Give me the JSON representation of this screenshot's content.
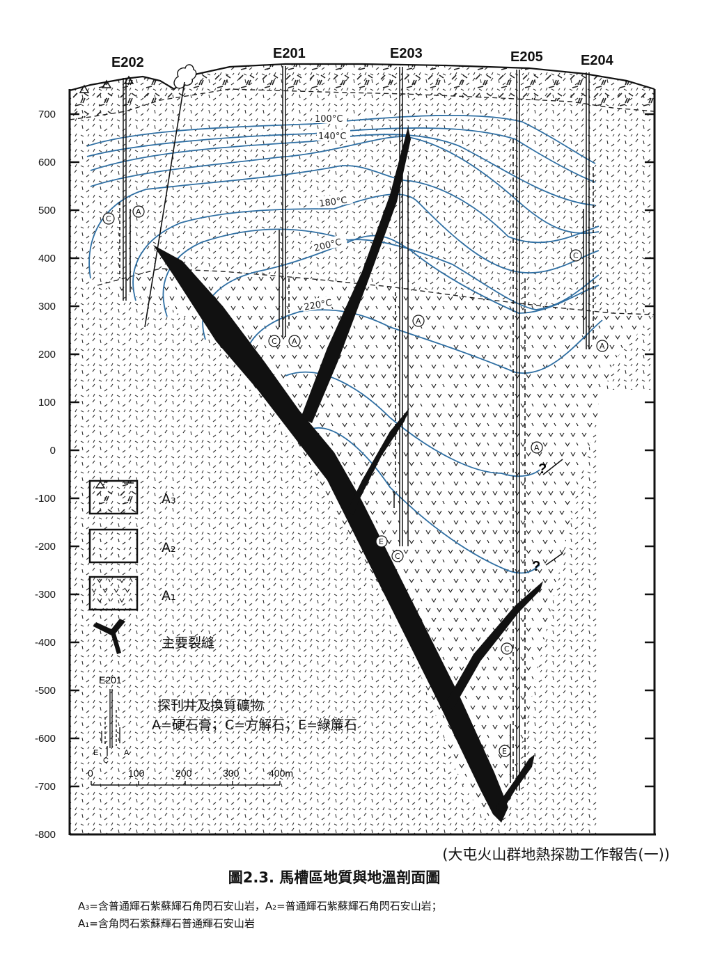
{
  "wells": [
    {
      "name": "E202"
    },
    {
      "name": "E201"
    },
    {
      "name": "E203"
    },
    {
      "name": "E205"
    },
    {
      "name": "E204"
    }
  ],
  "elevation_ticks": [
    "700",
    "600",
    "500",
    "400",
    "300",
    "200",
    "100",
    "0",
    "-100",
    "-200",
    "-300",
    "-400",
    "-500",
    "-600",
    "-700",
    "-800"
  ],
  "isotherm_labels": [
    "100°C",
    "140°C",
    "180°C",
    "200°C",
    "220°C"
  ],
  "mineral_marks": [
    "A",
    "C",
    "E"
  ],
  "unknown_mark": "?",
  "legend": {
    "a3": "A₃",
    "a2": "A₂",
    "a1": "A₁",
    "fracture": "主要裂縫",
    "well_name": "E201",
    "well_title": "探刊井及換質礦物",
    "minerals": "A=硬石膏；C=方解石；E=綠簾石",
    "well_marks": {
      "e": "E",
      "c": "C",
      "a": "A"
    }
  },
  "scale_bar": {
    "labels": [
      "0",
      "100",
      "200",
      "300",
      "400m"
    ]
  },
  "caption": {
    "source": "(大屯火山群地熱探勘工作報告(一))",
    "title": "圖2.3. 馬槽區地質與地溫剖面圖",
    "note_line1": "A₃=含普通輝石紫蘇輝石角閃石安山岩，A₂=普通輝石紫蘇輝石角閃石安山岩；",
    "note_line2": "A₁=含角閃石紫蘇輝石普通輝石安山岩"
  },
  "colors": {
    "isotherm": "#2f6fa3",
    "ink": "#111111"
  }
}
